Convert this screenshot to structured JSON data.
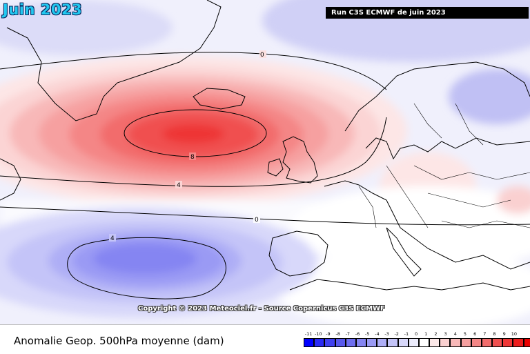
{
  "title": "Juin 2023",
  "run_label": "Run C3S ECMWF de juin 2023",
  "copyright": "Copyright © 2023 Meteociel.fr - Source Copernicus C3S ECMWF",
  "footer_label": "Anomalie Geop. 500hPa moyenne (dam)",
  "contour_labels": [
    "0",
    "8",
    "4",
    "0",
    "4"
  ],
  "scale": {
    "ticks": [
      "-11",
      "-10",
      "-9",
      "-8",
      "-7",
      "-6",
      "-5",
      "-4",
      "-3",
      "-2",
      "-1",
      "0",
      "1",
      "2",
      "3",
      "4",
      "5",
      "6",
      "7",
      "8",
      "9",
      "10"
    ],
    "colors": [
      "#0000ff",
      "#2a2af5",
      "#4040f0",
      "#5858ec",
      "#6e6ef0",
      "#8585f2",
      "#9a9af4",
      "#aeaef6",
      "#c4c4f8",
      "#d8d8fa",
      "#ececfc",
      "#ffffff",
      "#fce8e8",
      "#fad0d0",
      "#f8b8b8",
      "#f6a0a0",
      "#f48686",
      "#f26c6c",
      "#f05050",
      "#ee3636",
      "#ec1c1c",
      "#ea0000"
    ]
  }
}
